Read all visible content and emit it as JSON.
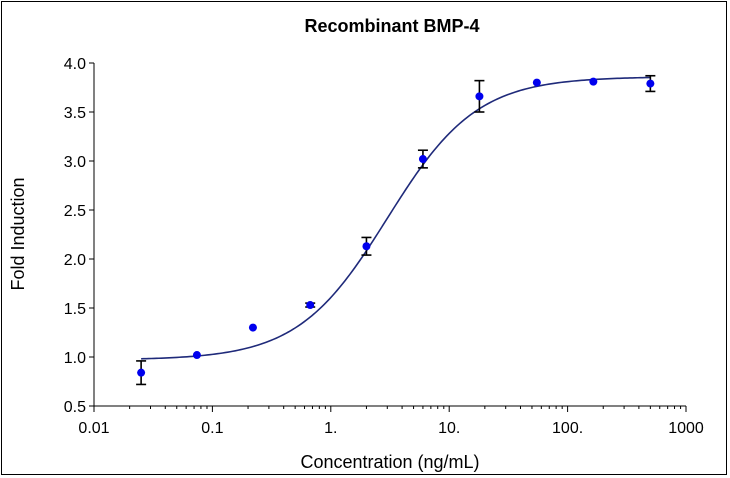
{
  "chart_data": {
    "type": "scatter",
    "title": "Recombinant BMP-4",
    "xlabel": "Concentration (ng/mL)",
    "ylabel": "Fold Induction",
    "x_scale": "log",
    "xlim": [
      0.01,
      1000
    ],
    "ylim": [
      0.5,
      4.0
    ],
    "x_tick_values": [
      0.01,
      0.1,
      1,
      10,
      100,
      1000
    ],
    "x_tick_labels": [
      "0.01",
      "0.1",
      "1.",
      "10.",
      "100.",
      "1000"
    ],
    "y_tick_values": [
      0.5,
      1.0,
      1.5,
      2.0,
      2.5,
      3.0,
      3.5,
      4.0
    ],
    "y_tick_labels": [
      "0.5",
      "1.0",
      "1.5",
      "2.0",
      "2.5",
      "3.0",
      "3.5",
      "4.0"
    ],
    "grid": false,
    "series": [
      {
        "points": [
          {
            "x": 0.025,
            "y": 0.84,
            "err": 0.12
          },
          {
            "x": 0.074,
            "y": 1.02,
            "err": 0.0
          },
          {
            "x": 0.22,
            "y": 1.3,
            "err": 0.0
          },
          {
            "x": 0.67,
            "y": 1.53,
            "err": 0.02
          },
          {
            "x": 2.0,
            "y": 2.13,
            "err": 0.09
          },
          {
            "x": 6.0,
            "y": 3.02,
            "err": 0.09
          },
          {
            "x": 18.0,
            "y": 3.66,
            "err": 0.16
          },
          {
            "x": 55.0,
            "y": 3.8,
            "err": 0.0
          },
          {
            "x": 165.0,
            "y": 3.81,
            "err": 0.0
          },
          {
            "x": 500.0,
            "y": 3.79,
            "err": 0.08
          }
        ]
      }
    ],
    "fit_curve": {
      "bottom": 0.97,
      "top": 3.86,
      "ec50": 3.0,
      "hill": 1.15
    },
    "colors": {
      "points": "#0000ee",
      "curve": "#1f2a7a",
      "errorbars": "#000000"
    }
  }
}
